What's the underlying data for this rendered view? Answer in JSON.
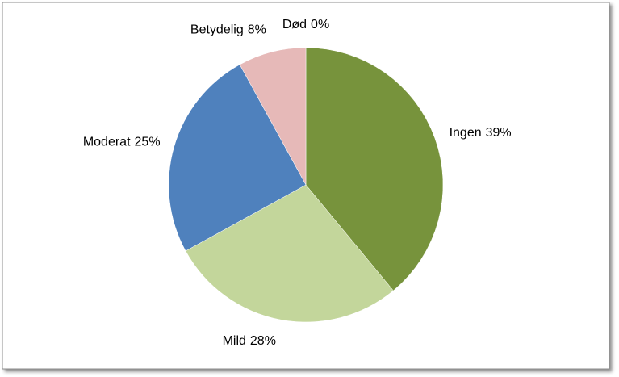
{
  "chart_data": {
    "type": "pie",
    "categories": [
      "Ingen",
      "Mild",
      "Moderat",
      "Betydelig",
      "Død"
    ],
    "values": [
      39,
      28,
      25,
      8,
      0
    ],
    "value_labels": [
      "39%",
      "28%",
      "25%",
      "8%",
      "0%"
    ],
    "colors": [
      "#77933c",
      "#c3d69b",
      "#4f81bd",
      "#e6b9b8",
      "#c0504d"
    ]
  }
}
